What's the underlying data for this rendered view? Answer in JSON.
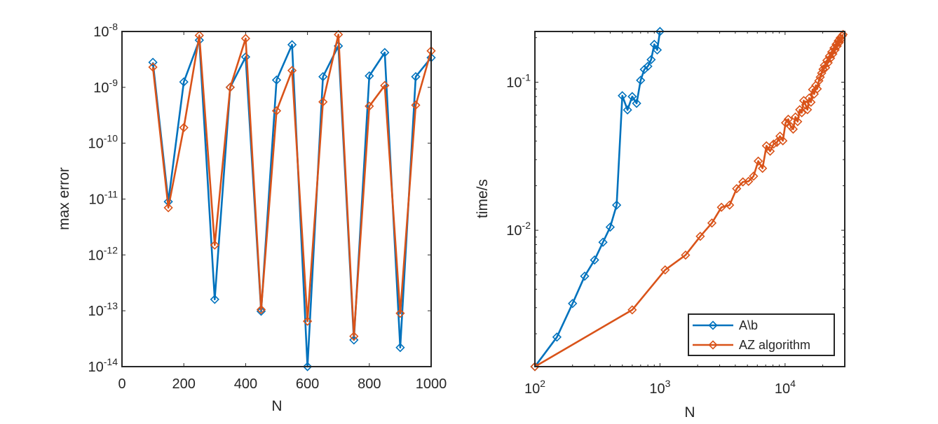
{
  "colors": {
    "blue": "#0072BD",
    "orange": "#D95319",
    "axis": "#262626"
  },
  "chart_data": [
    {
      "type": "line",
      "xscale": "linear",
      "yscale": "log",
      "xlabel": "N",
      "ylabel": "max error",
      "xlim": [
        0,
        1000
      ],
      "ylim": [
        1e-14,
        1e-08
      ],
      "xticks": [
        {
          "value": 0,
          "label": "0"
        },
        {
          "value": 200,
          "label": "200"
        },
        {
          "value": 400,
          "label": "400"
        },
        {
          "value": 600,
          "label": "600"
        },
        {
          "value": 800,
          "label": "800"
        },
        {
          "value": 1000,
          "label": "1000"
        }
      ],
      "yticks": [
        {
          "value": 1e-14,
          "base": "10",
          "exp": "-14"
        },
        {
          "value": 1e-13,
          "base": "10",
          "exp": "-13"
        },
        {
          "value": 1e-12,
          "base": "10",
          "exp": "-12"
        },
        {
          "value": 1e-11,
          "base": "10",
          "exp": "-11"
        },
        {
          "value": 1e-10,
          "base": "10",
          "exp": "-10"
        },
        {
          "value": 1e-09,
          "base": "10",
          "exp": "-9"
        },
        {
          "value": 1e-08,
          "base": "10",
          "exp": "-8"
        }
      ],
      "series": [
        {
          "name": "A\\b",
          "color": "#0072BD",
          "x": [
            100,
            150,
            200,
            250,
            300,
            350,
            400,
            450,
            500,
            550,
            600,
            650,
            700,
            750,
            800,
            850,
            900,
            950,
            1000
          ],
          "y": [
            2.8e-09,
            9e-12,
            1.25e-09,
            7e-09,
            1.6e-13,
            1e-09,
            3.5e-09,
            9.8e-14,
            1.35e-09,
            5.8e-09,
            1e-14,
            1.55e-09,
            5.5e-09,
            3e-14,
            1.6e-09,
            4.2e-09,
            2.2e-14,
            1.55e-09,
            3.4e-09
          ]
        },
        {
          "name": "AZ algorithm",
          "color": "#D95319",
          "x": [
            100,
            150,
            200,
            250,
            300,
            350,
            400,
            450,
            500,
            550,
            600,
            650,
            700,
            750,
            800,
            850,
            900,
            950,
            1000
          ],
          "y": [
            2.3e-09,
            7e-12,
            1.9e-10,
            8.5e-09,
            1.5e-12,
            1e-09,
            7.5e-09,
            1.05e-13,
            3.8e-10,
            2e-09,
            6.5e-14,
            5.5e-10,
            8.8e-09,
            3.5e-14,
            4.6e-10,
            1.08e-09,
            9e-14,
            4.8e-10,
            4.5e-09
          ]
        }
      ]
    },
    {
      "type": "line",
      "xscale": "log",
      "yscale": "log",
      "xlabel": "N",
      "ylabel": "time/s",
      "xlim": [
        100,
        30000
      ],
      "ylim": [
        0.0012,
        0.22
      ],
      "xticks": [
        {
          "value": 100,
          "base": "10",
          "exp": "2"
        },
        {
          "value": 1000,
          "base": "10",
          "exp": "3"
        },
        {
          "value": 10000,
          "base": "10",
          "exp": "4"
        }
      ],
      "yticks": [
        {
          "value": 0.01,
          "base": "10",
          "exp": "-2"
        },
        {
          "value": 0.1,
          "base": "10",
          "exp": "-1"
        }
      ],
      "legend": {
        "location": "bottom-right",
        "entries": [
          "A\\b",
          "AZ algorithm"
        ]
      },
      "series": [
        {
          "name": "A\\b",
          "color": "#0072BD",
          "x": [
            100,
            150,
            200,
            250,
            300,
            350,
            400,
            450,
            500,
            550,
            600,
            650,
            700,
            750,
            800,
            850,
            900,
            950,
            1000
          ],
          "y": [
            0.0012,
            0.0019,
            0.0032,
            0.0049,
            0.0063,
            0.0083,
            0.0105,
            0.0148,
            0.081,
            0.065,
            0.08,
            0.072,
            0.103,
            0.122,
            0.128,
            0.142,
            0.18,
            0.165,
            0.22
          ]
        },
        {
          "name": "AZ algorithm",
          "color": "#D95319",
          "x": [
            100,
            600,
            1100,
            1600,
            2100,
            2600,
            3100,
            3600,
            4100,
            4600,
            5100,
            5600,
            6100,
            6600,
            7100,
            7600,
            8100,
            8600,
            9100,
            9600,
            10100,
            10600,
            11100,
            11600,
            12100,
            12600,
            13100,
            13600,
            14100,
            14600,
            15100,
            15600,
            16100,
            16600,
            17100,
            17600,
            18100,
            18600,
            19100,
            19600,
            20100,
            20600,
            21100,
            21600,
            22100,
            22600,
            23100,
            23600,
            24100,
            24600,
            25100,
            25600,
            26100,
            26600,
            27100,
            27600,
            28100,
            28600,
            29100
          ],
          "y": [
            0.0012,
            0.0029,
            0.0054,
            0.0068,
            0.0091,
            0.0112,
            0.0143,
            0.0148,
            0.0191,
            0.0212,
            0.0214,
            0.0232,
            0.0293,
            0.0262,
            0.0372,
            0.0342,
            0.0382,
            0.0392,
            0.0432,
            0.0402,
            0.0532,
            0.0562,
            0.0502,
            0.0482,
            0.0582,
            0.0542,
            0.0652,
            0.0622,
            0.0752,
            0.0702,
            0.0652,
            0.0782,
            0.0732,
            0.0892,
            0.0832,
            0.0952,
            0.0902,
            0.1022,
            0.1082,
            0.1152,
            0.1222,
            0.1302,
            0.1252,
            0.1402,
            0.1352,
            0.1502,
            0.1452,
            0.1602,
            0.1552,
            0.1702,
            0.1652,
            0.1802,
            0.1752,
            0.1902,
            0.1852,
            0.1992,
            0.1952,
            0.2052,
            0.2102
          ]
        }
      ]
    }
  ]
}
